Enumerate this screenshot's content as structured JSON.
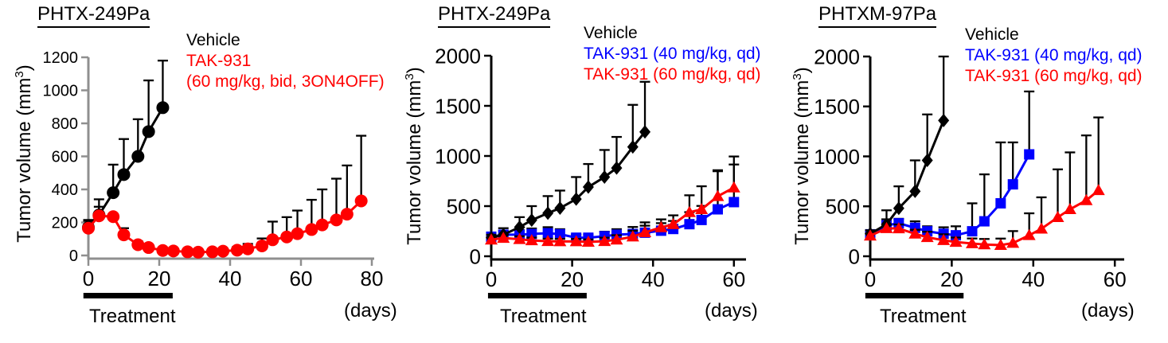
{
  "figure": {
    "background": "#ffffff",
    "description_note": "",
    "xunit_label": "(days)",
    "treatment_label": "Treatment"
  },
  "chart_data": [
    {
      "type": "line",
      "title": "PHTX-249Pa",
      "ylabel": "Tumor volume (mm³)",
      "ylabel_parts": {
        "pre": "Tumor volume (mm",
        "sup": "3",
        "post": ")"
      },
      "xlabel": "(days)",
      "treatment_label": "Treatment",
      "treatment_bar_days": [
        -1.4,
        23.8
      ],
      "xlim": [
        0,
        81
      ],
      "ylim": [
        0,
        1200
      ],
      "xticks": [
        0,
        20,
        40,
        60,
        80
      ],
      "yticks": [
        0,
        200,
        400,
        600,
        800,
        1000,
        1200
      ],
      "axis_color": "#8f8f8f",
      "grid": false,
      "error_bars": "up",
      "legend_position": "top-right-inside",
      "legend": [
        {
          "label": "Vehicle",
          "color": "#000000"
        },
        {
          "label": "TAK-931",
          "color": "#ff0000"
        },
        {
          "label": "(60 mg/kg, bid, 3ON4OFF)",
          "color": "#ff0000"
        }
      ],
      "series": [
        {
          "name": "Vehicle",
          "color": "#000000",
          "marker": "circle",
          "x": [
            0,
            3,
            7,
            10,
            14,
            17,
            21
          ],
          "y": [
            170,
            245,
            380,
            490,
            600,
            750,
            895
          ],
          "err_up": [
            45,
            95,
            170,
            215,
            225,
            310,
            285
          ]
        },
        {
          "name": "TAK-931 (60 mg/kg, bid, 3ON4OFF)",
          "color": "#ff0000",
          "marker": "circle",
          "x": [
            0,
            3,
            7,
            10,
            14,
            17,
            21,
            24,
            28,
            31,
            35,
            38,
            42,
            45,
            49,
            52,
            56,
            59,
            63,
            66,
            70,
            73,
            77
          ],
          "y": [
            165,
            240,
            235,
            125,
            65,
            48,
            30,
            27,
            22,
            20,
            22,
            26,
            32,
            40,
            58,
            95,
            112,
            132,
            157,
            185,
            215,
            250,
            330
          ],
          "err_up": [
            45,
            55,
            0,
            40,
            20,
            0,
            0,
            0,
            0,
            0,
            0,
            15,
            20,
            30,
            45,
            110,
            120,
            140,
            180,
            215,
            250,
            295,
            395
          ]
        }
      ]
    },
    {
      "type": "line",
      "title": "PHTX-249Pa",
      "ylabel": "Tumor volume (mm³)",
      "ylabel_parts": {
        "pre": "Tumor volume (mm",
        "sup": "3",
        "post": ")"
      },
      "xlabel": "(days)",
      "treatment_label": "Treatment",
      "treatment_bar_days": [
        -0.8,
        23.6
      ],
      "xlim": [
        0,
        63
      ],
      "ylim": [
        0,
        2000
      ],
      "xticks": [
        0,
        20,
        40,
        60
      ],
      "yticks": [
        0,
        500,
        1000,
        1500,
        2000
      ],
      "axis_color": "#000000",
      "grid": false,
      "error_bars": "up",
      "legend_position": "top-right-inside",
      "legend": [
        {
          "label": "Vehicle",
          "color": "#000000"
        },
        {
          "label": "TAK-931 (40 mg/kg, qd)",
          "color": "#0000ff"
        },
        {
          "label": "TAK-931 (60 mg/kg, qd)",
          "color": "#ff0000"
        }
      ],
      "series": [
        {
          "name": "Vehicle",
          "color": "#000000",
          "marker": "diamond",
          "x": [
            0,
            3,
            7,
            10,
            14,
            17,
            21,
            24,
            28,
            31,
            35,
            38
          ],
          "y": [
            185,
            215,
            290,
            360,
            430,
            480,
            570,
            690,
            790,
            880,
            1090,
            1240
          ],
          "err_up": [
            30,
            65,
            100,
            140,
            170,
            175,
            220,
            230,
            270,
            310,
            420,
            500
          ]
        },
        {
          "name": "TAK-931 (40 mg/kg, qd)",
          "color": "#0000ff",
          "marker": "square",
          "x": [
            0,
            3,
            7,
            10,
            14,
            17,
            21,
            24,
            28,
            31,
            35,
            38,
            42,
            45,
            49,
            52,
            56,
            60
          ],
          "y": [
            195,
            215,
            215,
            222,
            230,
            220,
            185,
            185,
            200,
            215,
            222,
            235,
            255,
            272,
            320,
            362,
            468,
            540
          ],
          "err_up": [
            25,
            40,
            45,
            55,
            60,
            50,
            30,
            30,
            45,
            55,
            70,
            70,
            75,
            80,
            120,
            140,
            390,
            375
          ]
        },
        {
          "name": "TAK-931 (60 mg/kg, qd)",
          "color": "#ff0000",
          "marker": "triangle",
          "x": [
            0,
            3,
            7,
            10,
            14,
            17,
            21,
            24,
            28,
            31,
            35,
            38,
            42,
            45,
            49,
            52,
            56,
            60
          ],
          "y": [
            165,
            182,
            170,
            158,
            150,
            148,
            148,
            143,
            150,
            165,
            195,
            238,
            288,
            318,
            438,
            468,
            598,
            685
          ],
          "err_up": [
            25,
            30,
            30,
            28,
            25,
            25,
            25,
            25,
            35,
            45,
            60,
            100,
            80,
            90,
            170,
            230,
            250,
            310
          ]
        }
      ]
    },
    {
      "type": "line",
      "title": "PHTXM-97Pa",
      "ylabel": "Tumor volume (mm³)",
      "ylabel_parts": {
        "pre": "Tumor volume (mm",
        "sup": "3",
        "post": ")"
      },
      "xlabel": "(days)",
      "treatment_label": "Treatment",
      "treatment_bar_days": [
        -1.2,
        22.9
      ],
      "xlim": [
        0,
        62
      ],
      "ylim": [
        0,
        2000
      ],
      "xticks": [
        0,
        20,
        40,
        60
      ],
      "yticks": [
        0,
        500,
        1000,
        1500,
        2000
      ],
      "axis_color": "#000000",
      "grid": false,
      "error_bars": "up",
      "legend_position": "top-right-inside",
      "legend": [
        {
          "label": "Vehicle",
          "color": "#000000"
        },
        {
          "label": "TAK-931 (40 mg/kg, qd)",
          "color": "#0000ff"
        },
        {
          "label": "TAK-931 (60 mg/kg, qd)",
          "color": "#ff0000"
        }
      ],
      "series": [
        {
          "name": "Vehicle",
          "color": "#000000",
          "marker": "diamond",
          "x": [
            0,
            4,
            7,
            11,
            14,
            18
          ],
          "y": [
            225,
            320,
            480,
            650,
            960,
            1360
          ],
          "err_up": [
            35,
            140,
            220,
            310,
            460,
            640
          ]
        },
        {
          "name": "TAK-931 (40 mg/kg, qd)",
          "color": "#0000ff",
          "marker": "square",
          "x": [
            0,
            4,
            7,
            11,
            14,
            18,
            21,
            25,
            28,
            32,
            35,
            39
          ],
          "y": [
            220,
            310,
            330,
            285,
            250,
            225,
            210,
            250,
            350,
            530,
            720,
            1020
          ],
          "err_up": [
            30,
            60,
            45,
            65,
            50,
            65,
            90,
            280,
            470,
            610,
            420,
            630
          ]
        },
        {
          "name": "TAK-931 (60 mg/kg, qd)",
          "color": "#ff0000",
          "marker": "triangle",
          "x": [
            0,
            4,
            7,
            11,
            14,
            18,
            21,
            25,
            28,
            32,
            35,
            39,
            42,
            46,
            49,
            53,
            56
          ],
          "y": [
            205,
            280,
            278,
            225,
            190,
            160,
            142,
            128,
            118,
            112,
            132,
            210,
            275,
            390,
            470,
            560,
            660
          ],
          "err_up": [
            25,
            35,
            40,
            40,
            55,
            60,
            45,
            50,
            55,
            65,
            120,
            220,
            315,
            480,
            570,
            650,
            730
          ]
        }
      ]
    }
  ]
}
